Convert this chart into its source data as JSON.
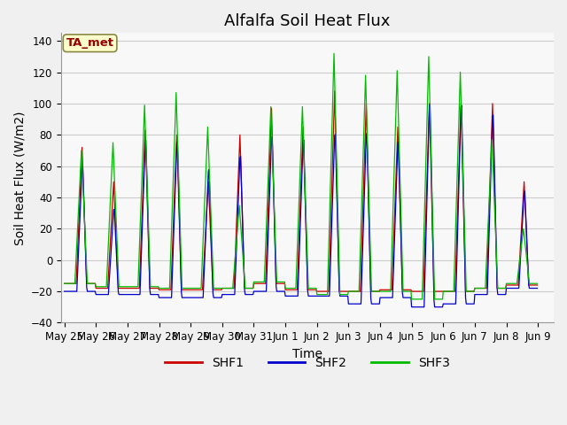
{
  "title": "Alfalfa Soil Heat Flux",
  "xlabel": "Time",
  "ylabel": "Soil Heat Flux (W/m2)",
  "ylim": [
    -40,
    145
  ],
  "yticks": [
    -40,
    -20,
    0,
    20,
    40,
    60,
    80,
    100,
    120,
    140
  ],
  "bg_color": "#f0f0f0",
  "plot_bg_color": "#f8f8f8",
  "shf1_color": "#cc0000",
  "shf2_color": "#0000cc",
  "shf3_color": "#00bb00",
  "legend_label1": "SHF1",
  "legend_label2": "SHF2",
  "legend_label3": "SHF3",
  "annotation_text": "TA_met",
  "annotation_color": "#990000",
  "annotation_bg": "#ffffcc",
  "tick_labels": [
    "May 25",
    "May 26",
    "May 27",
    "May 28",
    "May 29",
    "May 30",
    "May 31",
    "Jun 1",
    "Jun 2",
    "Jun 3",
    "Jun 4",
    "Jun 5",
    "Jun 6",
    "Jun 7",
    "Jun 8",
    "Jun 9"
  ],
  "n_days": 15.5,
  "title_fontsize": 13,
  "axis_fontsize": 10,
  "tick_fontsize": 8.5,
  "legend_fontsize": 10,
  "peaks_shf1": [
    72,
    50,
    83,
    80,
    50,
    80,
    97,
    85,
    108,
    100,
    85,
    100,
    100,
    100,
    50
  ],
  "peaks_shf2": [
    65,
    36,
    83,
    82,
    63,
    72,
    85,
    83,
    87,
    88,
    82,
    108,
    107,
    100,
    48
  ],
  "peaks_shf3": [
    70,
    75,
    99,
    107,
    85,
    35,
    98,
    98,
    132,
    118,
    121,
    130,
    120,
    77,
    20
  ],
  "trough_shf1": [
    -15,
    -18,
    -18,
    -19,
    -19,
    -18,
    -15,
    -19,
    -20,
    -20,
    -19,
    -20,
    -20,
    -18,
    -16
  ],
  "trough_shf2": [
    -20,
    -22,
    -22,
    -24,
    -24,
    -22,
    -20,
    -23,
    -23,
    -28,
    -24,
    -30,
    -28,
    -22,
    -18
  ],
  "trough_shf3": [
    -15,
    -17,
    -17,
    -18,
    -18,
    -18,
    -14,
    -18,
    -22,
    -20,
    -20,
    -25,
    -20,
    -18,
    -15
  ],
  "peak_hour": 13.5,
  "rise_hours": 4.5,
  "fall_hours": 3.5,
  "samples_per_day": 48
}
